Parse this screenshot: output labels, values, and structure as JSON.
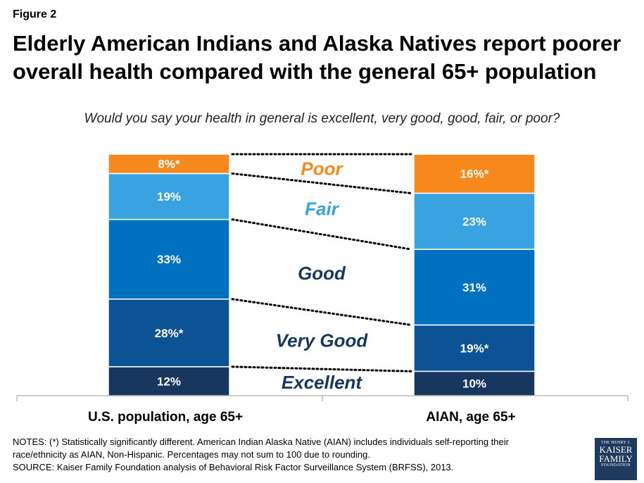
{
  "figure_label": "Figure 2",
  "title": "Elderly American Indians and Alaska Natives report poorer overall health compared with the general 65+ population",
  "subtitle": "Would you say your health in general is excellent, very good, good, fair, or poor?",
  "chart_data": {
    "type": "bar",
    "stacked": true,
    "percent_stacked": true,
    "categories": [
      "U.S. population, age 65+",
      "AIAN, age 65+"
    ],
    "series": [
      {
        "name": "Excellent",
        "values": [
          12,
          10
        ],
        "labels": [
          "12%",
          "10%"
        ],
        "color": "#17375e"
      },
      {
        "name": "Very Good",
        "values": [
          28,
          19
        ],
        "labels": [
          "28%*",
          "19%*"
        ],
        "color": "#0b5394"
      },
      {
        "name": "Good",
        "values": [
          33,
          31
        ],
        "labels": [
          "33%",
          "31%"
        ],
        "color": "#0070c0"
      },
      {
        "name": "Fair",
        "values": [
          19,
          23
        ],
        "labels": [
          "19%",
          "23%"
        ],
        "color": "#38a3e0"
      },
      {
        "name": "Poor",
        "values": [
          8,
          16
        ],
        "labels": [
          "8%*",
          "16%*"
        ],
        "color": "#f7891c"
      }
    ],
    "series_label_colors": [
      "#17375e",
      "#17375e",
      "#17375e",
      "#38a3e0",
      "#f7891c"
    ],
    "legend_placement": "between bars",
    "grid": false
  },
  "notes": {
    "line1": "NOTES: (*) Statistically significantly different.  American Indian Alaska Native (AIAN) includes individuals self-reporting their",
    "line2": "race/ethnicity as AIAN, Non-Hispanic.  Percentages may not sum to 100 due to rounding.",
    "source": "SOURCE: Kaiser Family Foundation analysis of Behavioral Risk Factor Surveillance System (BRFSS), 2013."
  },
  "logo": {
    "line1": "THE HENRY J.",
    "line2": "KAISER",
    "line3": "FAMILY",
    "line4": "FOUNDATION",
    "color": "#1f3a5f"
  }
}
